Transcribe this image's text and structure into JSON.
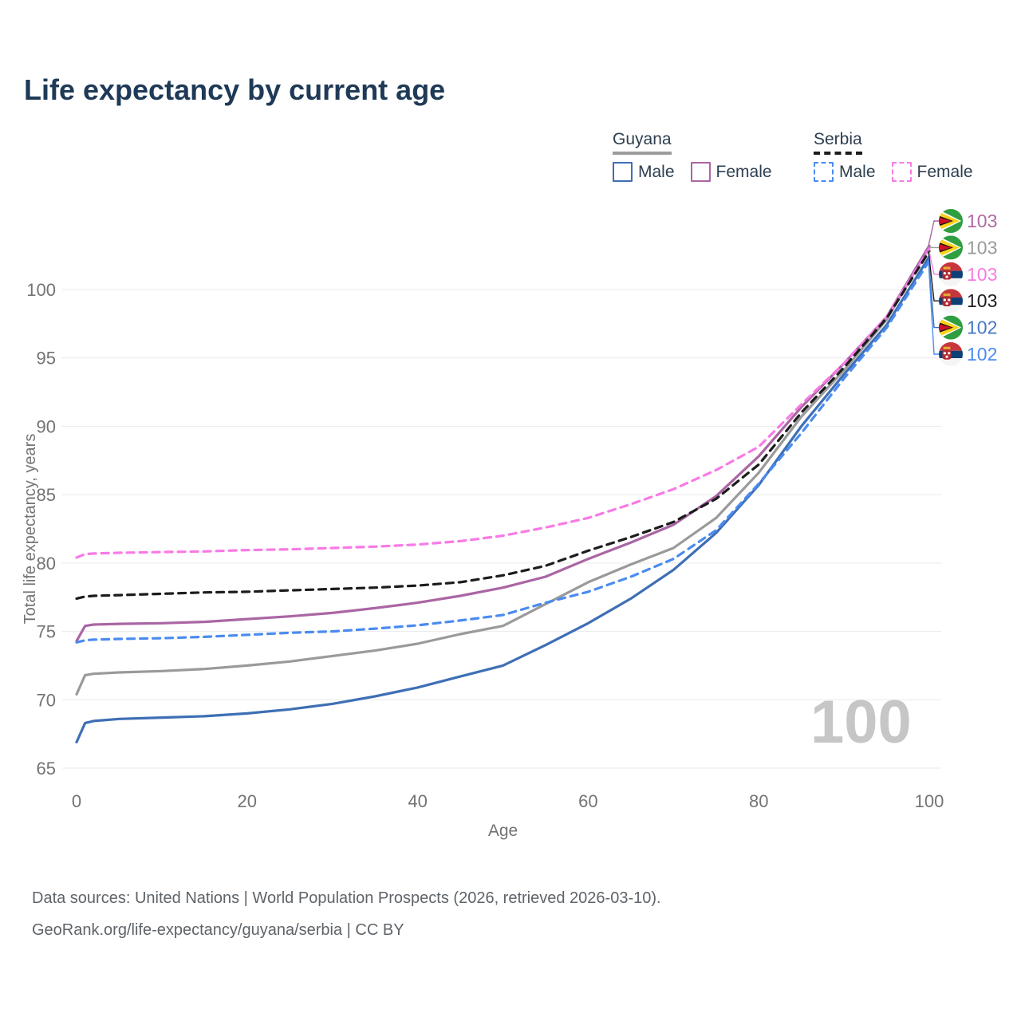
{
  "title": "Life expectancy by current age",
  "legend": {
    "groups": [
      {
        "country": "Guyana",
        "underline_style": "solid",
        "underline_color": "#9c9c9c",
        "items": [
          {
            "label": "Male",
            "color": "#3e6fb5",
            "dashed": false
          },
          {
            "label": "Female",
            "color": "#aa66a3",
            "dashed": false
          }
        ]
      },
      {
        "country": "Serbia",
        "underline_style": "dashed",
        "underline_color": "#1c1c1c",
        "items": [
          {
            "label": "Male",
            "color": "#4b8bf0",
            "dashed": true
          },
          {
            "label": "Female",
            "color": "#f87ae5",
            "dashed": true
          }
        ]
      }
    ]
  },
  "chart_data": {
    "type": "line",
    "title": "Life expectancy by current age",
    "xlabel": "Age",
    "ylabel": "Total life expectancy, years",
    "xlim": [
      0,
      100
    ],
    "ylim": [
      65,
      100
    ],
    "xticks": [
      0,
      20,
      40,
      60,
      80,
      100
    ],
    "yticks": [
      65,
      70,
      75,
      80,
      85,
      90,
      95,
      100
    ],
    "grid": "horizontal",
    "gridline_color": "#e9e9e9",
    "tick_label_color": "#737373",
    "legend_position": "top-right",
    "x": [
      0,
      1,
      2,
      5,
      10,
      15,
      20,
      25,
      30,
      35,
      40,
      45,
      50,
      55,
      60,
      65,
      70,
      75,
      80,
      85,
      90,
      95,
      100
    ],
    "series": [
      {
        "name": "Guyana all",
        "country": "guyana",
        "sex": "all",
        "color": "#9a9a9a",
        "dashed": false,
        "values": [
          70.4,
          71.8,
          71.9,
          72.0,
          72.1,
          72.25,
          72.5,
          72.8,
          73.2,
          73.6,
          74.1,
          74.8,
          75.4,
          77.0,
          78.6,
          79.9,
          81.1,
          83.3,
          86.6,
          90.7,
          94.1,
          97.8,
          103.1
        ]
      },
      {
        "name": "Guyana Female",
        "country": "guyana",
        "sex": "female",
        "color": "#aa66a3",
        "dashed": false,
        "values": [
          74.3,
          75.4,
          75.5,
          75.55,
          75.6,
          75.7,
          75.9,
          76.1,
          76.35,
          76.7,
          77.1,
          77.6,
          78.2,
          79.0,
          80.3,
          81.5,
          82.8,
          84.9,
          87.8,
          91.4,
          94.6,
          98.0,
          103.2
        ]
      },
      {
        "name": "Guyana Male",
        "country": "guyana",
        "sex": "male",
        "color": "#3e6fb5",
        "dashed": false,
        "values": [
          66.9,
          68.3,
          68.45,
          68.6,
          68.7,
          68.8,
          69.0,
          69.3,
          69.7,
          70.25,
          70.9,
          71.7,
          72.5,
          74.0,
          75.6,
          77.4,
          79.5,
          82.2,
          85.7,
          90.0,
          93.8,
          97.4,
          102.4
        ]
      },
      {
        "name": "Serbia Female",
        "country": "serbia",
        "sex": "female",
        "color": "#f87ae5",
        "dashed": true,
        "values": [
          80.4,
          80.65,
          80.7,
          80.75,
          80.8,
          80.85,
          80.95,
          81.0,
          81.1,
          81.2,
          81.35,
          81.6,
          82.0,
          82.6,
          83.3,
          84.3,
          85.4,
          86.8,
          88.5,
          91.6,
          94.6,
          98.0,
          103.0
        ]
      },
      {
        "name": "Serbia all",
        "country": "serbia",
        "sex": "all",
        "color": "#1c1c1c",
        "dashed": true,
        "values": [
          77.4,
          77.55,
          77.6,
          77.65,
          77.75,
          77.85,
          77.9,
          78.0,
          78.1,
          78.2,
          78.35,
          78.6,
          79.1,
          79.8,
          80.9,
          81.9,
          83.0,
          84.7,
          87.2,
          91.0,
          94.3,
          97.9,
          102.8
        ]
      },
      {
        "name": "Serbia Male",
        "country": "serbia",
        "sex": "male",
        "color": "#4b8bf0",
        "dashed": true,
        "values": [
          74.2,
          74.35,
          74.4,
          74.45,
          74.5,
          74.6,
          74.75,
          74.9,
          75.0,
          75.2,
          75.45,
          75.8,
          76.2,
          77.1,
          77.9,
          79.0,
          80.3,
          82.4,
          85.8,
          89.5,
          93.5,
          97.2,
          102.1
        ]
      }
    ]
  },
  "end_annotations": [
    {
      "series_index": 1,
      "flag": "guyana",
      "label": "103",
      "color": "#b06aa5"
    },
    {
      "series_index": 0,
      "flag": "guyana",
      "label": "103",
      "color": "#9a9a9a"
    },
    {
      "series_index": 3,
      "flag": "serbia",
      "label": "103",
      "color": "#f87ae5"
    },
    {
      "series_index": 4,
      "flag": "serbia",
      "label": "103",
      "color": "#1c1c1c"
    },
    {
      "series_index": 2,
      "flag": "guyana",
      "label": "102",
      "color": "#4577c4"
    },
    {
      "series_index": 5,
      "flag": "serbia",
      "label": "102",
      "color": "#4b8bf0"
    }
  ],
  "watermark": "100",
  "footer": {
    "line1": "Data sources: United Nations | World Population Prospects (2026, retrieved 2026-03-10).",
    "line2": "GeoRank.org/life-expectancy/guyana/serbia | CC BY"
  }
}
